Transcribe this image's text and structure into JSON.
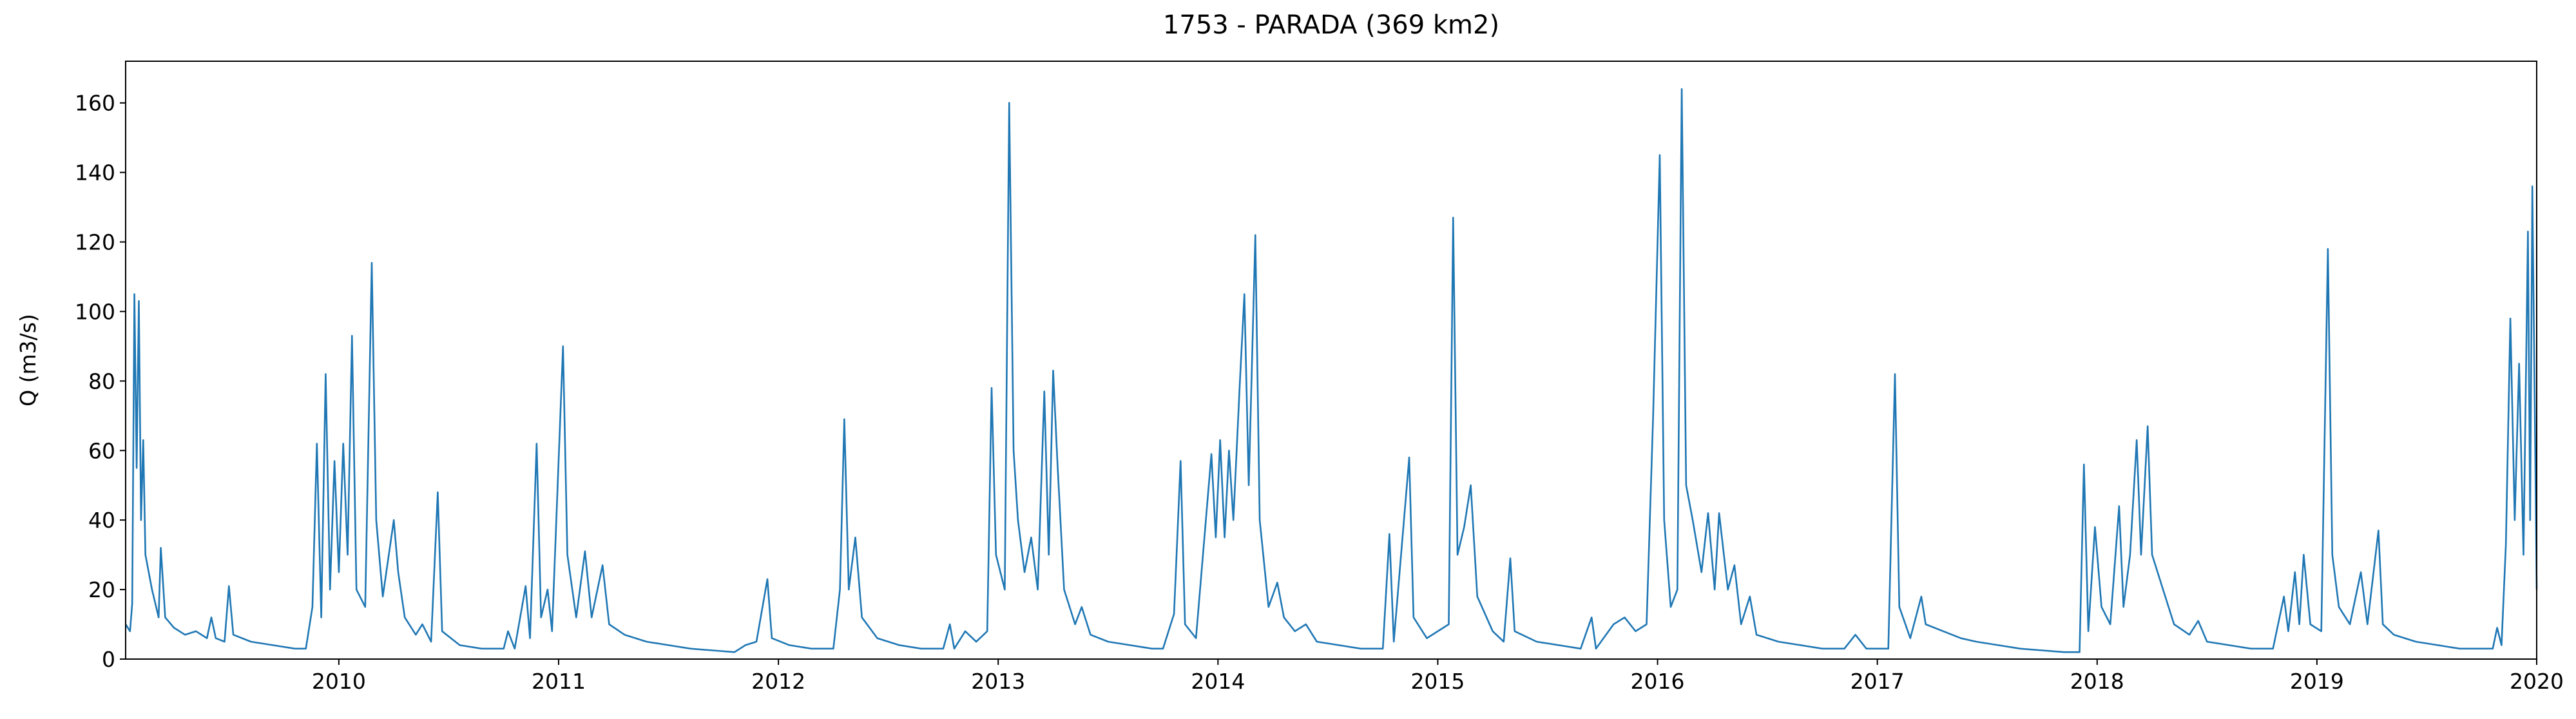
{
  "chart_data": {
    "type": "line",
    "title": "1753 - PARADA (369 km2)",
    "y_label": "Q (m3/s)",
    "color": "#1f77b4",
    "x": [
      2009.03,
      2009.05,
      2009.06,
      2009.07,
      2009.08,
      2009.09,
      2009.1,
      2009.11,
      2009.12,
      2009.15,
      2009.18,
      2009.19,
      2009.21,
      2009.25,
      2009.3,
      2009.35,
      2009.4,
      2009.42,
      2009.44,
      2009.48,
      2009.5,
      2009.52,
      2009.6,
      2009.7,
      2009.8,
      2009.85,
      2009.88,
      2009.9,
      2009.92,
      2009.94,
      2009.96,
      2009.98,
      2010.0,
      2010.02,
      2010.04,
      2010.06,
      2010.08,
      2010.12,
      2010.15,
      2010.17,
      2010.2,
      2010.25,
      2010.27,
      2010.3,
      2010.35,
      2010.38,
      2010.42,
      2010.45,
      2010.47,
      2010.55,
      2010.65,
      2010.75,
      2010.77,
      2010.8,
      2010.85,
      2010.87,
      2010.9,
      2010.92,
      2010.95,
      2010.97,
      2011.02,
      2011.04,
      2011.08,
      2011.12,
      2011.15,
      2011.2,
      2011.23,
      2011.3,
      2011.4,
      2011.5,
      2011.6,
      2011.7,
      2011.8,
      2011.85,
      2011.9,
      2011.95,
      2011.97,
      2012.05,
      2012.15,
      2012.25,
      2012.28,
      2012.3,
      2012.32,
      2012.35,
      2012.38,
      2012.45,
      2012.55,
      2012.65,
      2012.75,
      2012.78,
      2012.8,
      2012.85,
      2012.9,
      2012.95,
      2012.97,
      2012.99,
      2013.03,
      2013.05,
      2013.07,
      2013.09,
      2013.12,
      2013.15,
      2013.18,
      2013.21,
      2013.23,
      2013.25,
      2013.27,
      2013.3,
      2013.35,
      2013.38,
      2013.42,
      2013.5,
      2013.6,
      2013.7,
      2013.75,
      2013.8,
      2013.83,
      2013.85,
      2013.9,
      2013.97,
      2013.99,
      2014.01,
      2014.03,
      2014.05,
      2014.07,
      2014.1,
      2014.12,
      2014.14,
      2014.17,
      2014.19,
      2014.23,
      2014.27,
      2014.3,
      2014.35,
      2014.4,
      2014.45,
      2014.55,
      2014.65,
      2014.75,
      2014.78,
      2014.8,
      2014.87,
      2014.89,
      2014.95,
      2015.05,
      2015.07,
      2015.09,
      2015.12,
      2015.15,
      2015.18,
      2015.25,
      2015.3,
      2015.33,
      2015.35,
      2015.45,
      2015.55,
      2015.65,
      2015.7,
      2015.72,
      2015.8,
      2015.85,
      2015.9,
      2015.95,
      2015.98,
      2016.01,
      2016.03,
      2016.06,
      2016.09,
      2016.11,
      2016.13,
      2016.16,
      2016.2,
      2016.23,
      2016.26,
      2016.28,
      2016.32,
      2016.35,
      2016.38,
      2016.42,
      2016.45,
      2016.55,
      2016.65,
      2016.75,
      2016.85,
      2016.9,
      2016.95,
      2017.05,
      2017.08,
      2017.1,
      2017.15,
      2017.2,
      2017.22,
      2017.3,
      2017.38,
      2017.45,
      2017.55,
      2017.65,
      2017.75,
      2017.85,
      2017.92,
      2017.94,
      2017.96,
      2017.99,
      2018.02,
      2018.06,
      2018.1,
      2018.12,
      2018.15,
      2018.18,
      2018.2,
      2018.23,
      2018.25,
      2018.3,
      2018.35,
      2018.42,
      2018.46,
      2018.5,
      2018.6,
      2018.7,
      2018.8,
      2018.85,
      2018.87,
      2018.9,
      2018.92,
      2018.94,
      2018.97,
      2019.02,
      2019.05,
      2019.07,
      2019.1,
      2019.15,
      2019.2,
      2019.23,
      2019.28,
      2019.3,
      2019.35,
      2019.45,
      2019.55,
      2019.65,
      2019.75,
      2019.8,
      2019.82,
      2019.84,
      2019.86,
      2019.88,
      2019.9,
      2019.92,
      2019.94,
      2019.96,
      2019.97,
      2019.98,
      2019.99,
      2020.0
    ],
    "values": [
      10,
      8,
      16,
      105,
      55,
      103,
      40,
      63,
      30,
      20,
      12,
      32,
      12,
      9,
      7,
      8,
      6,
      12,
      6,
      5,
      21,
      7,
      5,
      4,
      3,
      3,
      15,
      62,
      12,
      82,
      20,
      57,
      25,
      62,
      30,
      93,
      20,
      15,
      114,
      40,
      18,
      40,
      25,
      12,
      7,
      10,
      5,
      48,
      8,
      4,
      3,
      3,
      8,
      3,
      21,
      6,
      62,
      12,
      20,
      8,
      90,
      30,
      12,
      31,
      12,
      27,
      10,
      7,
      5,
      4,
      3,
      2.5,
      2,
      4,
      5,
      23,
      6,
      4,
      3,
      3,
      20,
      69,
      20,
      35,
      12,
      6,
      4,
      3,
      3,
      10,
      3,
      8,
      5,
      8,
      78,
      30,
      20,
      160,
      60,
      40,
      25,
      35,
      20,
      77,
      30,
      83,
      56,
      20,
      10,
      15,
      7,
      5,
      4,
      3,
      3,
      13,
      57,
      10,
      6,
      59,
      35,
      63,
      35,
      60,
      40,
      80,
      105,
      50,
      122,
      40,
      15,
      22,
      12,
      8,
      10,
      5,
      4,
      3,
      3,
      36,
      5,
      58,
      12,
      6,
      10,
      127,
      30,
      38,
      50,
      18,
      8,
      5,
      29,
      8,
      5,
      4,
      3,
      12,
      3,
      10,
      12,
      8,
      10,
      70,
      145,
      40,
      15,
      20,
      164,
      50,
      40,
      25,
      42,
      20,
      42,
      20,
      27,
      10,
      18,
      7,
      5,
      4,
      3,
      3,
      7,
      3,
      3,
      82,
      15,
      6,
      18,
      10,
      8,
      6,
      5,
      4,
      3,
      2.5,
      2,
      2,
      56,
      8,
      38,
      15,
      10,
      44,
      15,
      30,
      63,
      30,
      67,
      30,
      20,
      10,
      7,
      11,
      5,
      4,
      3,
      3,
      18,
      8,
      25,
      10,
      30,
      10,
      8,
      118,
      30,
      15,
      10,
      25,
      10,
      37,
      10,
      7,
      5,
      4,
      3,
      3,
      3,
      9,
      4,
      33,
      98,
      40,
      85,
      30,
      123,
      40,
      136,
      80,
      20
    ],
    "xlim": [
      2009.03,
      2020
    ],
    "xticks": [
      2010,
      2011,
      2012,
      2013,
      2014,
      2015,
      2016,
      2017,
      2018,
      2019,
      2020
    ],
    "ylim": [
      0,
      172
    ],
    "yticks": [
      0,
      20,
      40,
      60,
      80,
      100,
      120,
      140,
      160
    ]
  }
}
